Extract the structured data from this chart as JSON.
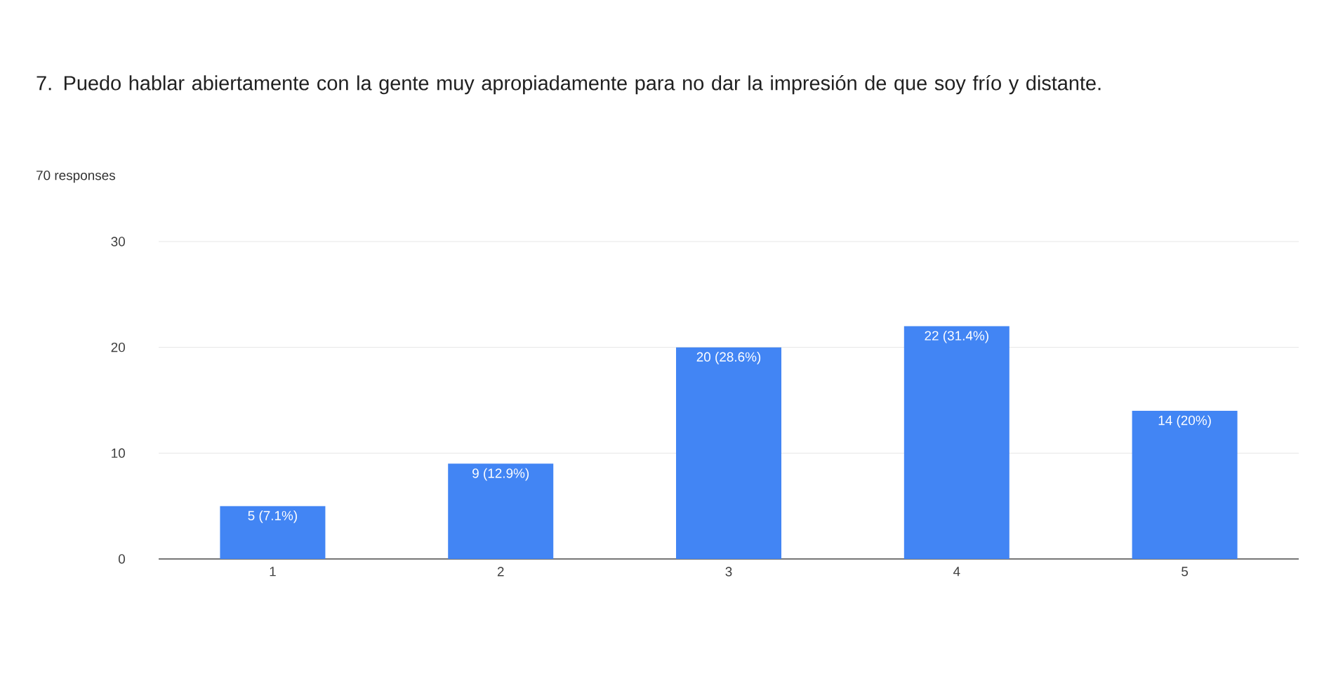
{
  "chart_data": {
    "type": "bar",
    "title": "7. Puedo hablar abiertamente con la gente muy apropiadamente para no dar la impresión de que soy frío y distante.",
    "subtitle": "70 responses",
    "categories": [
      "1",
      "2",
      "3",
      "4",
      "5"
    ],
    "values": [
      5,
      9,
      20,
      22,
      14
    ],
    "value_labels": [
      "5 (7.1%)",
      "9 (12.9%)",
      "20 (28.6%)",
      "22 (31.4%)",
      "14 (20%)"
    ],
    "color": "#4285f4",
    "ylim": [
      0,
      30
    ],
    "yticks": [
      0,
      10,
      20,
      30
    ],
    "grid": "y"
  }
}
